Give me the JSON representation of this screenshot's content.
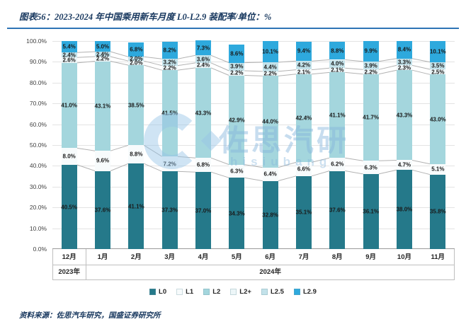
{
  "header": {
    "title": "图表56：2023-2024 年中国乘用新车月度 L0-L2.9 装配率/单位：%"
  },
  "footer": {
    "source": "资料来源：佐思汽车研究，国盛证券研究所"
  },
  "watermark": {
    "logo_shape": "C-ring-with-diamond",
    "text": "佐思汽研",
    "subtext": "hisiubang"
  },
  "chart_data": {
    "type": "bar",
    "stacked": true,
    "unit": "%",
    "title": "2023-2024 年中国乘用新车月度 L0-L2.9 装配率",
    "categories": [
      "12月",
      "1月",
      "2月",
      "3月",
      "4月",
      "5月",
      "6月",
      "7月",
      "8月",
      "9月",
      "10月",
      "11月"
    ],
    "year_groups": [
      {
        "label": "2023年",
        "span": 1
      },
      {
        "label": "2024年",
        "span": 11
      }
    ],
    "series": [
      {
        "name": "L0",
        "color": "#25798A",
        "values": [
          40.5,
          37.6,
          41.1,
          37.3,
          37.0,
          34.3,
          32.8,
          35.1,
          37.6,
          36.1,
          38.0,
          35.8
        ]
      },
      {
        "name": "L1",
        "color": "#F7FBFC",
        "values": [
          8.0,
          9.6,
          8.8,
          7.2,
          6.8,
          6.3,
          6.4,
          6.6,
          6.2,
          6.3,
          4.7,
          5.1
        ]
      },
      {
        "name": "L2",
        "color": "#A4D6DD",
        "values": [
          41.0,
          43.1,
          38.5,
          41.5,
          43.3,
          42.9,
          44.0,
          42.4,
          41.1,
          41.7,
          43.3,
          43.0
        ]
      },
      {
        "name": "L2+",
        "color": "#EDF6F8",
        "values": [
          2.6,
          2.2,
          2.0,
          2.2,
          2.4,
          2.2,
          2.2,
          2.1,
          2.1,
          2.2,
          2.3,
          2.5
        ]
      },
      {
        "name": "L2.5",
        "color": "#C3E2EA",
        "values": [
          2.4,
          2.4,
          2.0,
          3.2,
          3.6,
          3.9,
          4.4,
          4.2,
          4.0,
          3.9,
          3.3,
          3.5
        ]
      },
      {
        "name": "L2.9",
        "color": "#2EA9DD",
        "values": [
          5.4,
          5.0,
          6.8,
          8.2,
          7.3,
          8.6,
          10.1,
          9.4,
          8.8,
          9.9,
          8.4,
          10.1
        ]
      }
    ],
    "ylim": [
      0,
      100
    ],
    "ytick_step": 10,
    "yticks": [
      "0.0%",
      "10.0%",
      "20.0%",
      "30.0%",
      "40.0%",
      "50.0%",
      "60.0%",
      "70.0%",
      "80.0%",
      "90.0%",
      "100.0%"
    ],
    "value_label_format": "0.0%",
    "grid": true,
    "series_connector_lines": true,
    "legend_position": "bottom",
    "legend_labels": [
      "L0",
      "L1",
      "L2",
      "L2+",
      "L2.5",
      "L2.9"
    ]
  }
}
